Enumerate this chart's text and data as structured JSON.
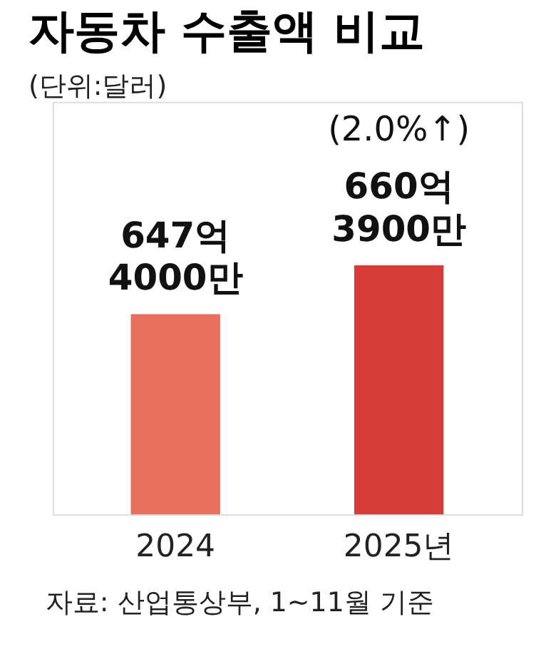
{
  "chart_data": {
    "type": "bar",
    "title": "자동차 수출액 비교",
    "subtitle": "(단위:달러)",
    "categories": [
      "2024",
      "2025년"
    ],
    "values": [
      647.4,
      660.39
    ],
    "colors": [
      "#e8705f",
      "#d63d38"
    ],
    "value_labels": [
      "647억 4000만",
      "660억 3900만"
    ],
    "ylim": [
      594,
      704
    ],
    "tick_labels": "x",
    "annotations": [
      "(2.0%↑)",
      "자료: 산업통상부, 1~11월 기준"
    ]
  }
}
